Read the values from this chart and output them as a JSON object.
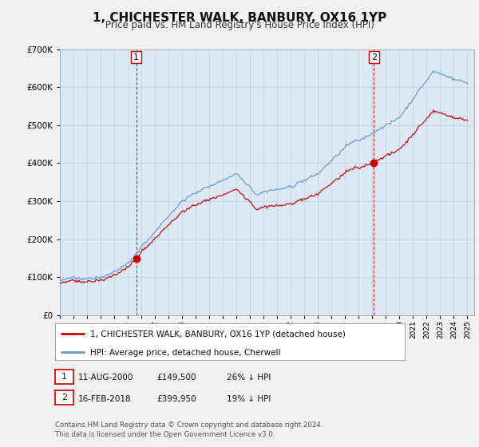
{
  "title": "1, CHICHESTER WALK, BANBURY, OX16 1YP",
  "subtitle": "Price paid vs. HM Land Registry's House Price Index (HPI)",
  "legend_line1": "1, CHICHESTER WALK, BANBURY, OX16 1YP (detached house)",
  "legend_line2": "HPI: Average price, detached house, Cherwell",
  "annotation1_date": "11-AUG-2000",
  "annotation1_price": "£149,500",
  "annotation1_hpi": "26% ↓ HPI",
  "annotation2_date": "16-FEB-2018",
  "annotation2_price": "£399,950",
  "annotation2_hpi": "19% ↓ HPI",
  "footer": "Contains HM Land Registry data © Crown copyright and database right 2024.\nThis data is licensed under the Open Government Licence v3.0.",
  "hpi_color": "#5b9bd5",
  "price_color": "#cc0000",
  "sale1_x": 2000.617,
  "sale1_y": 149500,
  "sale2_x": 2018.12,
  "sale2_y": 399950,
  "ylim": [
    0,
    700000
  ],
  "xlim_start": 1995.0,
  "xlim_end": 2025.5,
  "plot_bg": "#dce9f5",
  "background_color": "#f0f0f0",
  "title_fontsize": 11,
  "subtitle_fontsize": 9
}
